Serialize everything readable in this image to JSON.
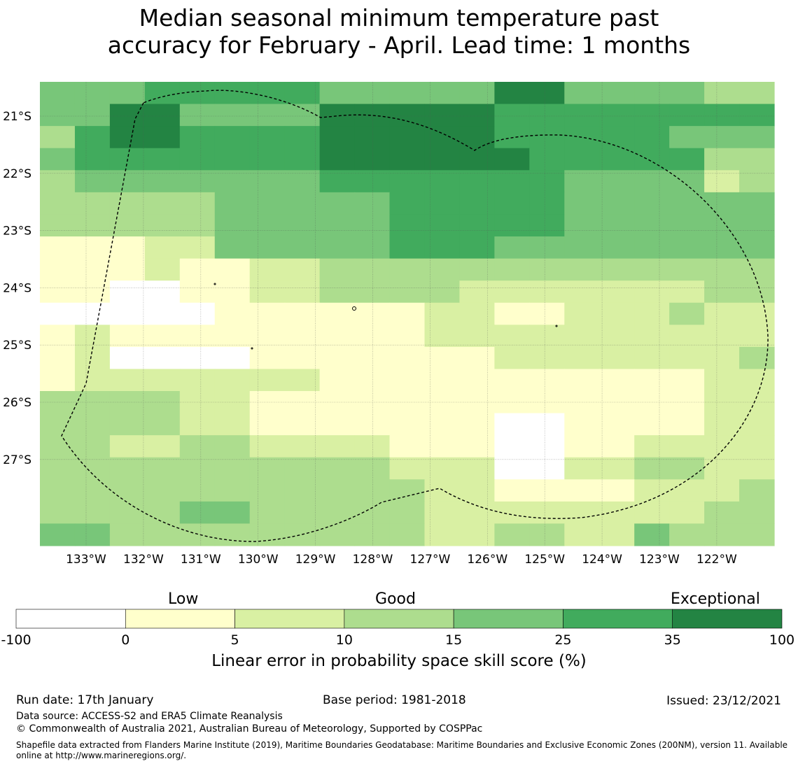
{
  "title": {
    "line1": "Median seasonal minimum temperature past",
    "line2": "accuracy for February - April. Lead time: 1 months"
  },
  "map": {
    "lon_ticks": [
      "133°W",
      "132°W",
      "131°W",
      "130°W",
      "129°W",
      "128°W",
      "127°W",
      "126°W",
      "125°W",
      "124°W",
      "123°W",
      "122°W"
    ],
    "lat_ticks": [
      "21°S",
      "22°S",
      "23°S",
      "24°S",
      "25°S",
      "26°S",
      "27°S"
    ],
    "grid": [
      [
        4,
        4,
        4,
        5,
        5,
        5,
        5,
        5,
        4,
        4,
        4,
        4,
        4,
        6,
        6,
        4,
        4,
        4,
        4,
        3,
        3
      ],
      [
        4,
        4,
        6,
        6,
        4,
        4,
        4,
        4,
        6,
        6,
        6,
        6,
        6,
        5,
        5,
        5,
        5,
        5,
        5,
        5,
        5
      ],
      [
        3,
        5,
        6,
        6,
        5,
        5,
        5,
        5,
        6,
        6,
        6,
        6,
        6,
        5,
        5,
        5,
        5,
        5,
        4,
        4,
        4
      ],
      [
        4,
        5,
        5,
        5,
        5,
        5,
        5,
        5,
        6,
        6,
        6,
        6,
        6,
        6,
        5,
        5,
        5,
        5,
        5,
        3,
        3
      ],
      [
        3,
        4,
        4,
        4,
        4,
        4,
        4,
        4,
        5,
        5,
        5,
        5,
        5,
        5,
        5,
        4,
        4,
        4,
        4,
        2,
        3
      ],
      [
        3,
        3,
        3,
        3,
        3,
        4,
        4,
        4,
        4,
        4,
        5,
        5,
        5,
        5,
        5,
        4,
        4,
        4,
        4,
        4,
        4
      ],
      [
        3,
        3,
        3,
        3,
        3,
        4,
        4,
        4,
        4,
        4,
        5,
        5,
        5,
        5,
        5,
        4,
        4,
        4,
        4,
        4,
        4
      ],
      [
        1,
        1,
        1,
        2,
        2,
        4,
        4,
        4,
        4,
        4,
        5,
        5,
        5,
        4,
        4,
        4,
        4,
        4,
        4,
        4,
        4
      ],
      [
        1,
        1,
        1,
        2,
        1,
        1,
        2,
        2,
        3,
        3,
        3,
        3,
        3,
        3,
        3,
        3,
        3,
        3,
        3,
        3,
        3
      ],
      [
        1,
        1,
        0,
        0,
        1,
        1,
        2,
        2,
        3,
        3,
        3,
        3,
        2,
        2,
        2,
        2,
        2,
        2,
        2,
        3,
        3
      ],
      [
        0,
        0,
        0,
        0,
        0,
        1,
        1,
        1,
        1,
        1,
        1,
        2,
        2,
        1,
        1,
        2,
        2,
        2,
        3,
        2,
        2
      ],
      [
        1,
        2,
        1,
        1,
        1,
        1,
        1,
        1,
        1,
        1,
        1,
        2,
        2,
        2,
        2,
        2,
        2,
        2,
        2,
        2,
        2
      ],
      [
        1,
        2,
        0,
        0,
        0,
        0,
        1,
        1,
        1,
        1,
        1,
        1,
        1,
        2,
        2,
        2,
        2,
        2,
        2,
        2,
        3
      ],
      [
        1,
        2,
        2,
        2,
        2,
        2,
        2,
        2,
        1,
        1,
        1,
        1,
        1,
        1,
        1,
        1,
        1,
        1,
        1,
        2,
        2
      ],
      [
        3,
        3,
        3,
        3,
        2,
        2,
        1,
        1,
        1,
        1,
        1,
        1,
        1,
        1,
        1,
        1,
        1,
        1,
        1,
        2,
        2
      ],
      [
        3,
        3,
        3,
        3,
        2,
        2,
        1,
        1,
        1,
        1,
        1,
        1,
        1,
        0,
        0,
        1,
        1,
        1,
        1,
        2,
        2
      ],
      [
        3,
        3,
        2,
        2,
        3,
        3,
        2,
        2,
        2,
        2,
        1,
        1,
        1,
        0,
        0,
        1,
        1,
        2,
        2,
        2,
        2
      ],
      [
        3,
        3,
        3,
        3,
        3,
        3,
        3,
        3,
        3,
        3,
        2,
        2,
        2,
        0,
        0,
        2,
        2,
        3,
        3,
        2,
        2
      ],
      [
        3,
        3,
        3,
        3,
        3,
        3,
        3,
        3,
        3,
        3,
        3,
        2,
        2,
        1,
        1,
        1,
        1,
        2,
        2,
        2,
        3
      ],
      [
        3,
        3,
        3,
        3,
        4,
        4,
        3,
        3,
        3,
        3,
        3,
        2,
        2,
        2,
        2,
        2,
        2,
        2,
        2,
        3,
        3
      ],
      [
        4,
        4,
        3,
        3,
        3,
        3,
        3,
        3,
        3,
        3,
        3,
        2,
        2,
        3,
        3,
        2,
        2,
        4,
        3,
        3,
        3
      ]
    ]
  },
  "colorbar": {
    "categories": [
      "Low",
      "Good",
      "Exceptional"
    ],
    "ticks": [
      "-100",
      "0",
      "5",
      "10",
      "15",
      "25",
      "35",
      "100"
    ],
    "colors": [
      "#ffffff",
      "#ffffcc",
      "#d9f0a3",
      "#addd8e",
      "#78c679",
      "#41ab5d",
      "#238443"
    ],
    "label": "Linear error in probability space skill score (%)"
  },
  "footer": {
    "run_date": "Run date: 17th January",
    "base_period": "Base period: 1981-2018",
    "issued": "Issued: 23/12/2021",
    "data_source": "Data source: ACCESS-S2 and ERA5 Climate Reanalysis",
    "copyright": "© Commonwealth of Australia 2021, Australian Bureau of Meteorology, Supported by COSPPac",
    "shapefile_line1": "Shapefile data extracted from Flanders Marine Institute (2019), Maritime Boundaries Geodatabase: Maritime Boundaries and Exclusive Economic Zones (200NM), version 11. Available",
    "shapefile_line2": "online at http://www.marineregions.org/."
  }
}
